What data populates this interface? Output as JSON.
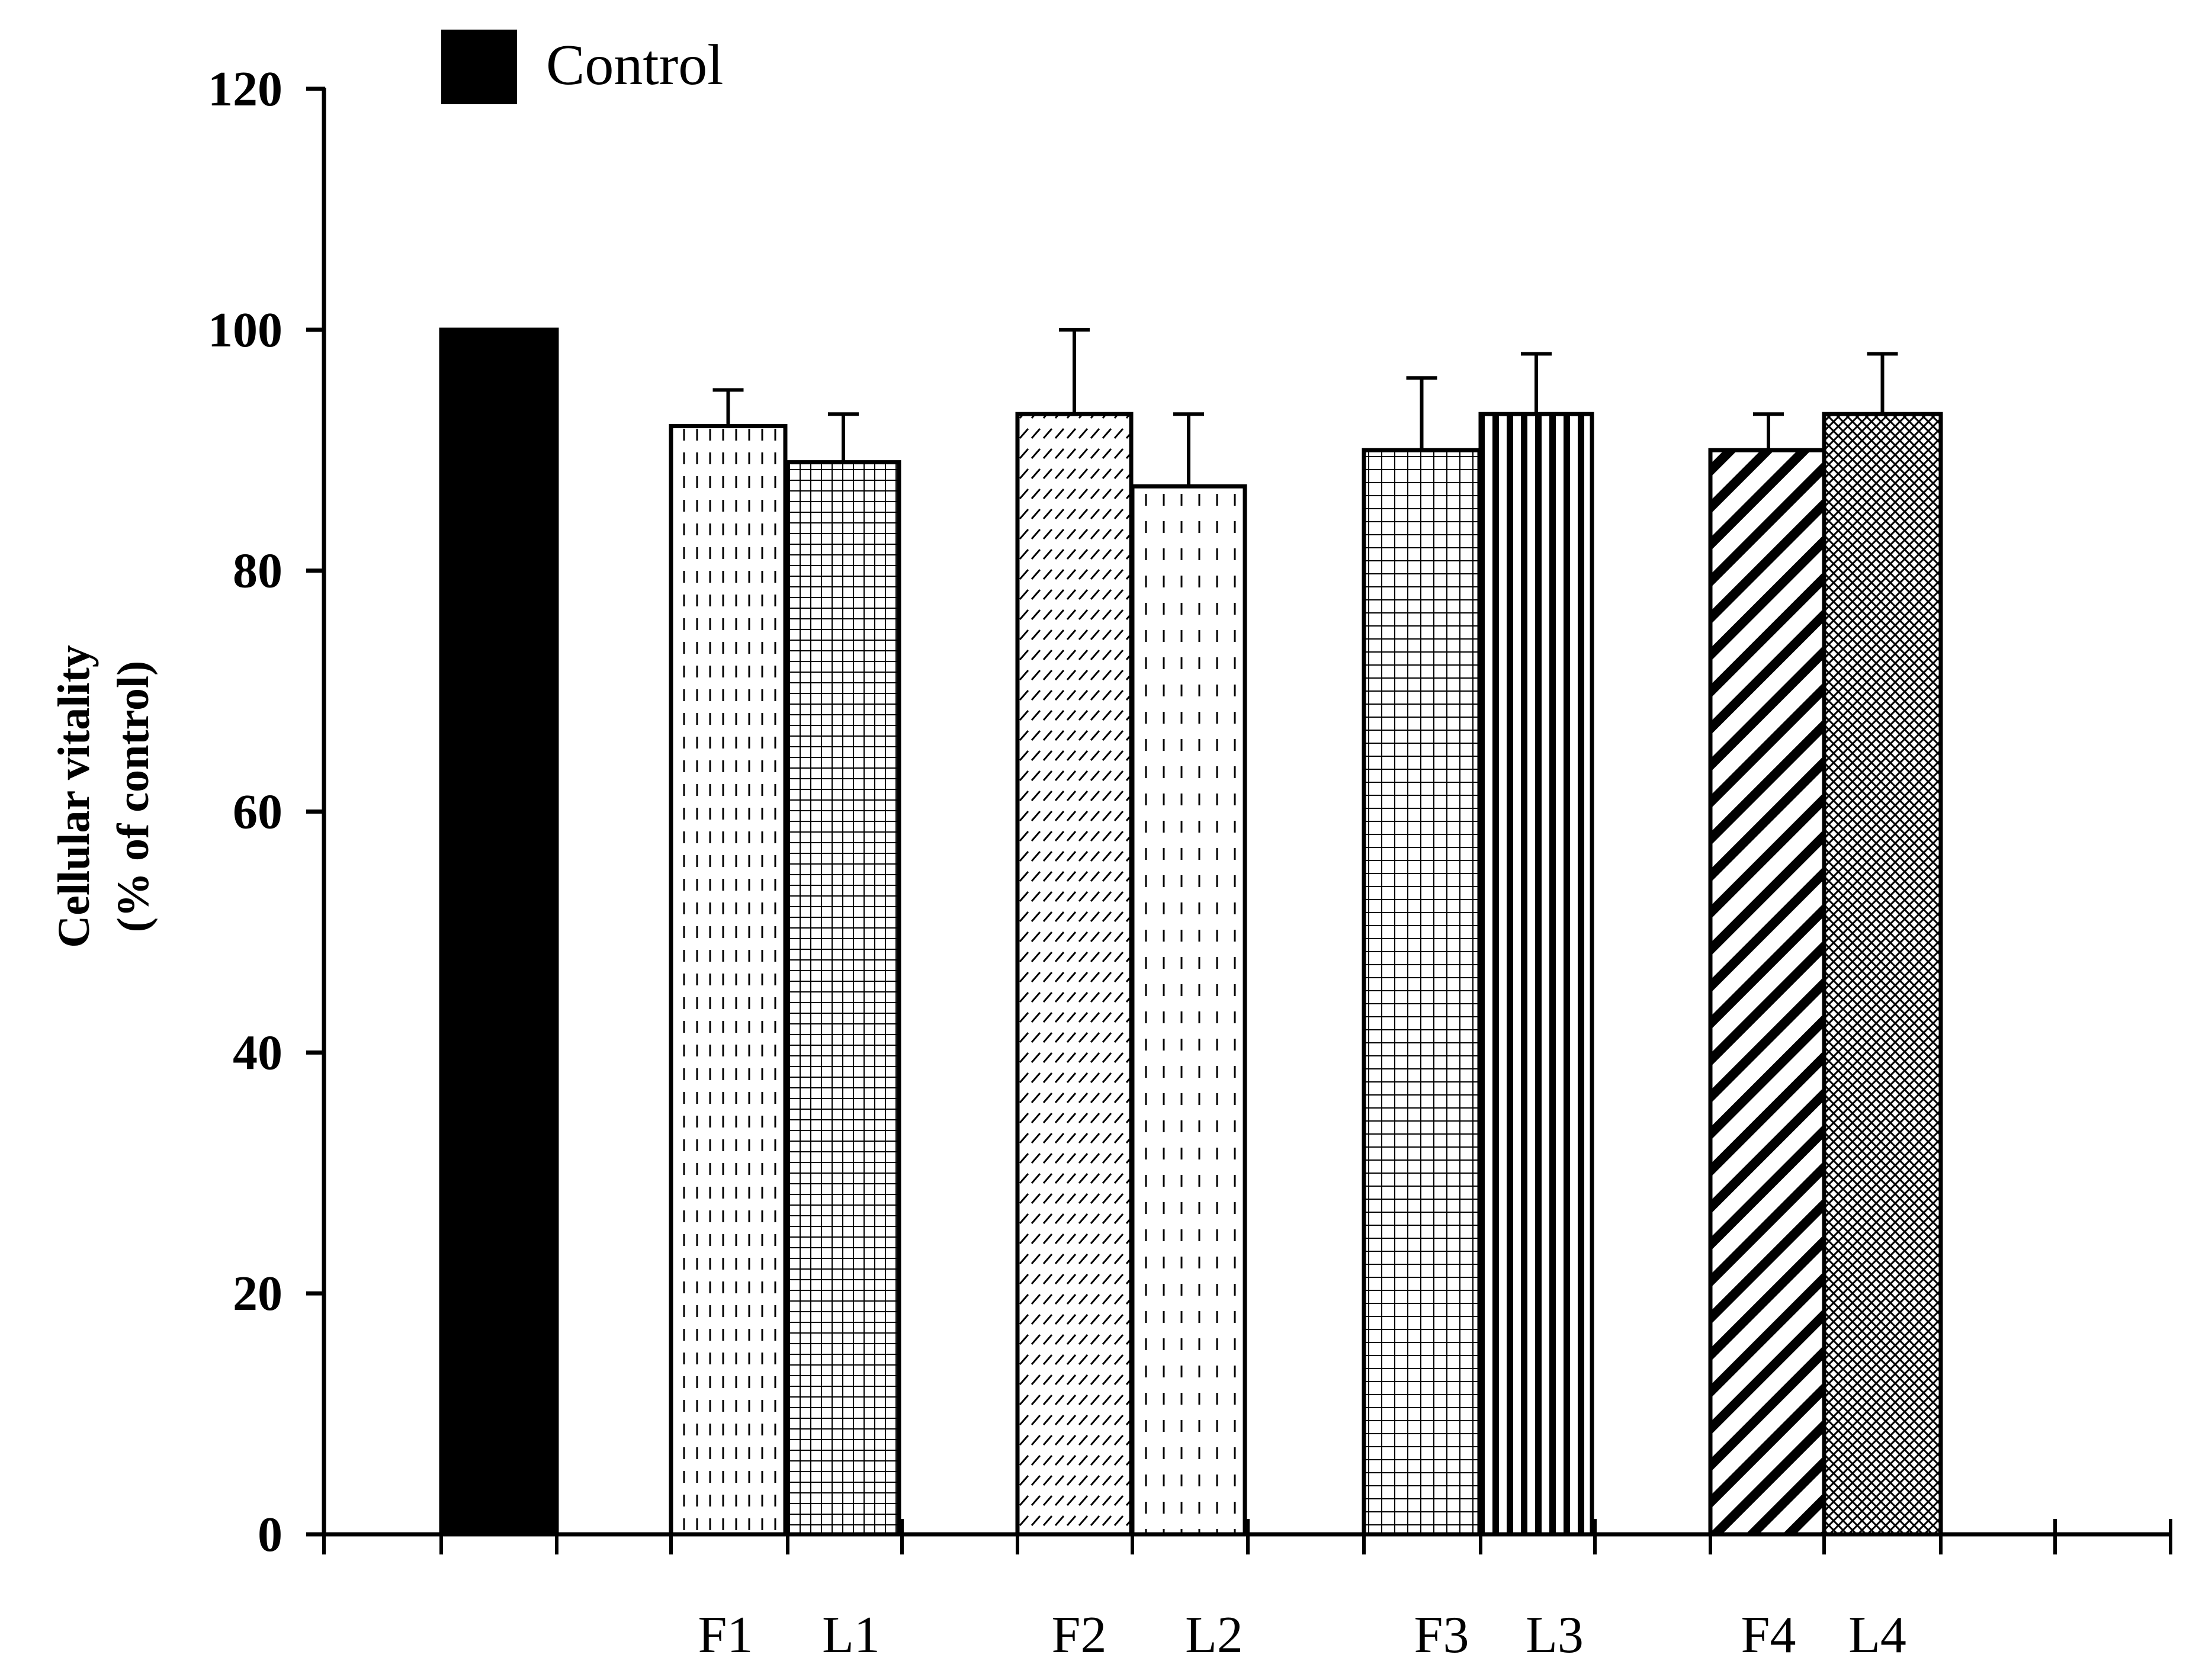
{
  "chart_data": {
    "type": "bar",
    "title": "",
    "xlabel": "",
    "ylabel_line1": "Cellular vitality",
    "ylabel_line2": "(% of control)",
    "ylim": [
      0,
      120
    ],
    "yticks": [
      0,
      20,
      40,
      60,
      80,
      100,
      120
    ],
    "legend": [
      {
        "label": "Control",
        "color": "#000000"
      }
    ],
    "categories": [
      "Control",
      "F1",
      "L1",
      "F2",
      "L2",
      "F3",
      "L3",
      "F4",
      "L4"
    ],
    "category_labels": [
      "",
      "F1",
      "L1",
      "F2",
      "L2",
      "F3",
      "L3",
      "F4",
      "L4"
    ],
    "values": [
      100,
      92,
      89,
      93,
      87,
      90,
      93,
      90,
      93
    ],
    "errors": [
      0,
      3,
      4,
      7,
      6,
      6,
      5,
      3,
      5
    ],
    "patterns": [
      "solid",
      "dash-v",
      "grid-fine",
      "slash-short",
      "dash-v-sparse",
      "grid",
      "vstripe",
      "diag",
      "crosshatch"
    ]
  }
}
